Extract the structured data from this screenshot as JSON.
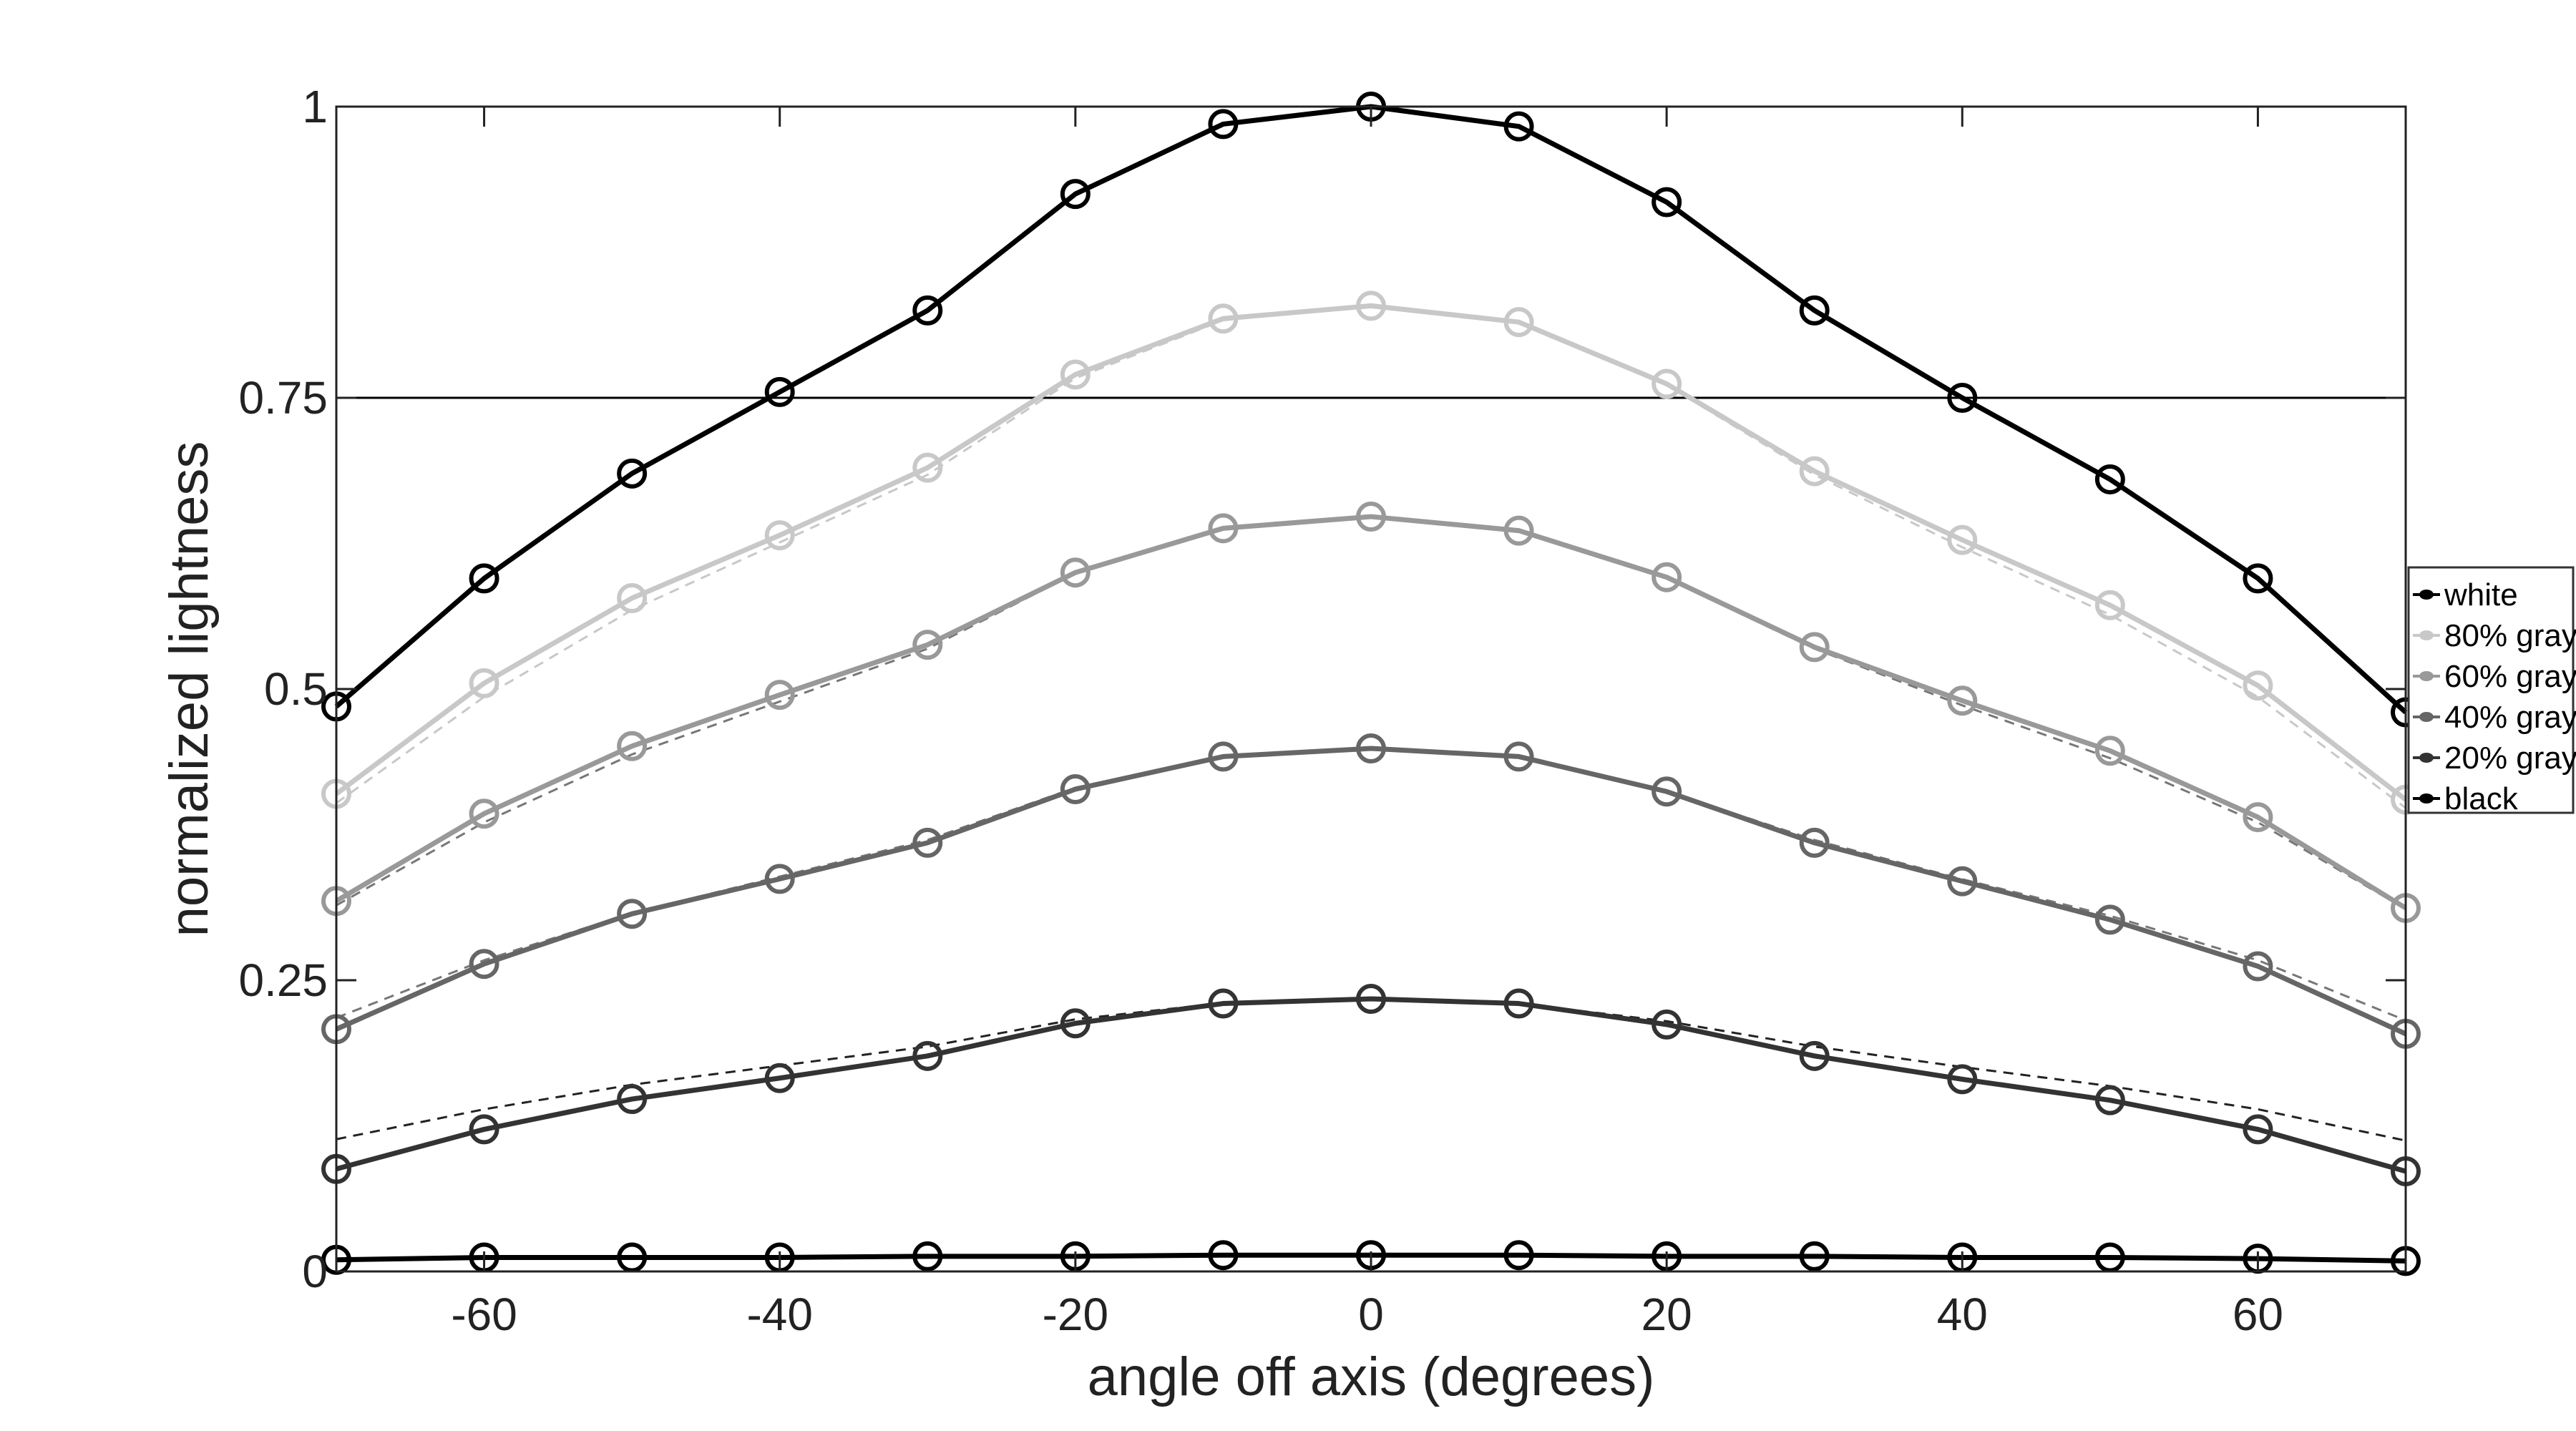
{
  "chart_data": {
    "type": "line",
    "title": "",
    "xlabel": "angle off axis (degrees)",
    "ylabel": "normalized lightness",
    "xlim": [
      -70,
      70
    ],
    "ylim": [
      0,
      1
    ],
    "xticks": [
      -60,
      -40,
      -20,
      0,
      20,
      40,
      60
    ],
    "xtick_labels": [
      "-60",
      "-40",
      "-20",
      "0",
      "20",
      "40",
      "60"
    ],
    "yticks": [
      0,
      0.25,
      0.5,
      0.75,
      1
    ],
    "ytick_labels": [
      "0",
      "0.25",
      "0.5",
      "0.75",
      "1"
    ],
    "grid": false,
    "legend_position": "right",
    "reference_line_y": 0.75,
    "x": [
      -70,
      -60,
      -50,
      -40,
      -30,
      -20,
      -10,
      0,
      10,
      20,
      30,
      40,
      50,
      60,
      70
    ],
    "series": [
      {
        "name": "white",
        "color": "#000000",
        "values": [
          0.485,
          0.595,
          0.685,
          0.755,
          0.825,
          0.925,
          0.985,
          1.0,
          0.983,
          0.918,
          0.825,
          0.75,
          0.68,
          0.595,
          0.48
        ]
      },
      {
        "name": "80% gray",
        "color": "#c8c8c8",
        "values": [
          0.41,
          0.505,
          0.578,
          0.632,
          0.69,
          0.77,
          0.818,
          0.829,
          0.815,
          0.762,
          0.687,
          0.628,
          0.572,
          0.503,
          0.405
        ]
      },
      {
        "name": "60% gray",
        "color": "#999999",
        "values": [
          0.318,
          0.393,
          0.451,
          0.495,
          0.538,
          0.6,
          0.638,
          0.648,
          0.636,
          0.596,
          0.536,
          0.49,
          0.447,
          0.39,
          0.312
        ]
      },
      {
        "name": "40% gray",
        "color": "#666666",
        "values": [
          0.208,
          0.264,
          0.307,
          0.337,
          0.368,
          0.414,
          0.442,
          0.449,
          0.442,
          0.412,
          0.368,
          0.335,
          0.302,
          0.262,
          0.204
        ]
      },
      {
        "name": "20% gray",
        "color": "#333333",
        "values": [
          0.088,
          0.122,
          0.148,
          0.166,
          0.185,
          0.213,
          0.23,
          0.234,
          0.23,
          0.212,
          0.185,
          0.165,
          0.147,
          0.122,
          0.086
        ]
      },
      {
        "name": "black",
        "color": "#000000",
        "values": [
          0.01,
          0.012,
          0.012,
          0.012,
          0.013,
          0.013,
          0.014,
          0.014,
          0.014,
          0.013,
          0.013,
          0.012,
          0.012,
          0.011,
          0.009
        ]
      }
    ],
    "dashed_reference": {
      "basis": "white",
      "series": [
        "80% gray",
        "60% gray",
        "40% gray",
        "20% gray"
      ],
      "method": "white curve scaled to series peak"
    }
  }
}
